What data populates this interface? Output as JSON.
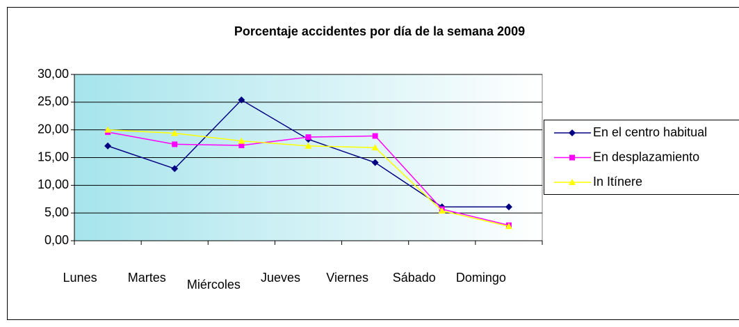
{
  "chart_data": {
    "type": "line",
    "title": "Porcentaje accidentes  por día de la semana 2009",
    "categories": [
      "Lunes",
      "Martes",
      "Miércoles",
      "Jueves",
      "Viernes",
      "Sábado",
      "Domingo"
    ],
    "series": [
      {
        "name": "En el centro habitual",
        "color": "#000080",
        "marker": "diamond",
        "values": [
          17.1,
          13.0,
          25.4,
          18.3,
          14.1,
          6.1,
          6.1
        ]
      },
      {
        "name": "En desplazamiento",
        "color": "#ff00ff",
        "marker": "square",
        "values": [
          19.6,
          17.4,
          17.2,
          18.7,
          18.9,
          5.7,
          2.8
        ]
      },
      {
        "name": "In Itínere",
        "color": "#ffff00",
        "marker": "triangle",
        "values": [
          20.0,
          19.4,
          18.0,
          17.1,
          16.8,
          5.4,
          2.6
        ]
      }
    ],
    "ylim": [
      0,
      30
    ],
    "yticks": [
      {
        "value": 0,
        "label": "0,00"
      },
      {
        "value": 5,
        "label": "5,00"
      },
      {
        "value": 10,
        "label": "10,00"
      },
      {
        "value": 15,
        "label": "15,00"
      },
      {
        "value": 20,
        "label": "20,00"
      },
      {
        "value": 25,
        "label": "25,00"
      },
      {
        "value": 30,
        "label": "30,00"
      }
    ],
    "grid": true,
    "legend": "right"
  }
}
